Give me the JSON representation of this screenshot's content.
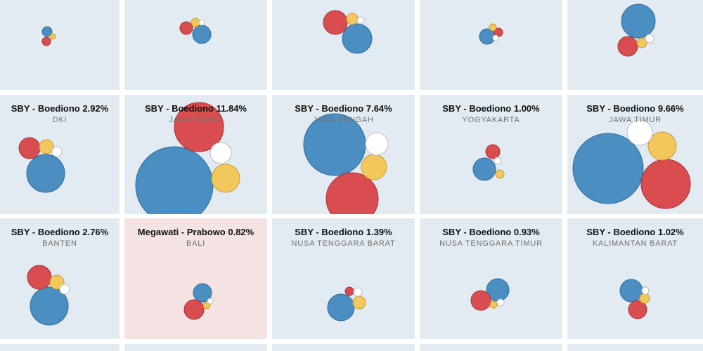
{
  "colors": {
    "cell_bg": "#e3ebf2",
    "cell_bg_alt": "#f5e3e4",
    "grid_gap": "#ffffff",
    "series": {
      "blue": "#4a8ec2",
      "red": "#d94c4f",
      "yellow": "#f2c75b",
      "white": "#ffffff"
    },
    "outline": {
      "blue": "#2e6a9a",
      "red": "#a83336",
      "yellow": "#c99a33",
      "white": "#bbbbbb"
    }
  },
  "chart_data": {
    "type": "scatter",
    "encoding": "small multiples of proportional bubbles; one bubble per color group",
    "regions": [
      {
        "title": "",
        "name": "",
        "bubbles": {
          "blue": 7,
          "red": 6,
          "yellow": 4,
          "white": 0
        }
      },
      {
        "title": "",
        "name": "",
        "bubbles": {
          "blue": 13,
          "red": 9,
          "yellow": 6,
          "white": 4
        }
      },
      {
        "title": "",
        "name": "",
        "bubbles": {
          "blue": 21,
          "red": 17,
          "yellow": 8,
          "white": 5
        }
      },
      {
        "title": "",
        "name": "",
        "bubbles": {
          "blue": 11,
          "red": 6,
          "yellow": 5,
          "white": 4
        }
      },
      {
        "title": "",
        "name": "",
        "bubbles": {
          "blue": 24,
          "red": 14,
          "yellow": 7,
          "white": 6
        }
      },
      {
        "title": "SBY - Boediono 2.92%",
        "name": "DKI",
        "bubbles": {
          "blue": 27,
          "red": 15,
          "yellow": 10,
          "white": 7
        }
      },
      {
        "title": "SBY - Boediono 11.84%",
        "name": "JAWA BARAT",
        "bubbles": {
          "blue": 55,
          "red": 35,
          "yellow": 20,
          "white": 15
        }
      },
      {
        "title": "SBY - Boediono 7.64%",
        "name": "JAWA TENGAH",
        "bubbles": {
          "blue": 44,
          "red": 37,
          "yellow": 18,
          "white": 16
        }
      },
      {
        "title": "SBY - Boediono 1.00%",
        "name": "YOGYAKARTA",
        "bubbles": {
          "blue": 16,
          "red": 10,
          "yellow": 6,
          "white": 5
        }
      },
      {
        "title": "SBY - Boediono 9.66%",
        "name": "JAWA TIMUR",
        "bubbles": {
          "blue": 50,
          "red": 35,
          "yellow": 20,
          "white": 18
        }
      },
      {
        "title": "SBY - Boediono 2.76%",
        "name": "BANTEN",
        "bubbles": {
          "blue": 27,
          "red": 17,
          "yellow": 10,
          "white": 7
        }
      },
      {
        "title": "Megawati - Prabowo 0.82%",
        "name": "BALI",
        "bubbles": {
          "blue": 13,
          "red": 14,
          "yellow": 5,
          "white": 4
        }
      },
      {
        "title": "SBY - Boediono 1.39%",
        "name": "NUSA TENGGARA BARAT",
        "bubbles": {
          "blue": 19,
          "red": 6,
          "yellow": 9,
          "white": 6
        }
      },
      {
        "title": "SBY - Boediono 0.93%",
        "name": "NUSA TENGGARA TIMUR",
        "bubbles": {
          "blue": 16,
          "red": 14,
          "yellow": 5,
          "white": 5
        }
      },
      {
        "title": "SBY - Boediono 1.02%",
        "name": "KALIMANTAN BARAT",
        "bubbles": {
          "blue": 16,
          "red": 13,
          "yellow": 7,
          "white": 5
        }
      },
      {
        "title": "",
        "name": "",
        "bubbles": {
          "blue": 0,
          "red": 0,
          "yellow": 0,
          "white": 0
        }
      },
      {
        "title": "",
        "name": "",
        "bubbles": {
          "blue": 0,
          "red": 0,
          "yellow": 0,
          "white": 0
        }
      },
      {
        "title": "",
        "name": "",
        "bubbles": {
          "blue": 0,
          "red": 0,
          "yellow": 0,
          "white": 0
        }
      },
      {
        "title": "",
        "name": "",
        "bubbles": {
          "blue": 0,
          "red": 0,
          "yellow": 0,
          "white": 0
        }
      },
      {
        "title": "",
        "name": "",
        "bubbles": {
          "blue": 0,
          "red": 0,
          "yellow": 0,
          "white": 0
        }
      }
    ]
  }
}
